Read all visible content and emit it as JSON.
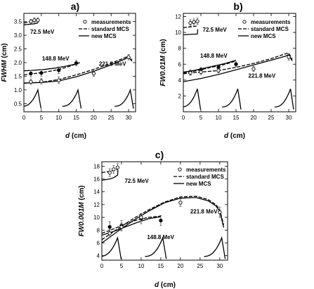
{
  "chart_data": [
    {
      "type": "line",
      "panel_label": "a)",
      "ylabel_main": "FWHM",
      "ylabel_unit": " (cm)",
      "xlabel_main": "d",
      "xlabel_unit": " (cm)",
      "xlim": [
        0,
        32
      ],
      "ylim": [
        0.2,
        3.8
      ],
      "xticks": [
        0,
        5,
        10,
        15,
        20,
        25,
        30
      ],
      "yticks": [
        0.5,
        1.0,
        1.5,
        2.0,
        2.5,
        3.0,
        3.5
      ],
      "ytick_labels": [
        "0.5",
        "1.0",
        "1.5",
        "2.0",
        "2.5",
        "3.0",
        "3.5"
      ],
      "legend": [
        "measurements",
        "standard MCS",
        "new MCS"
      ],
      "groups": [
        {
          "energy_label": "72.5 MeV",
          "label_at": [
            1.8,
            3.05
          ],
          "measurements": {
            "x": [
              2,
              3,
              4
            ],
            "y": [
              3.5,
              3.55,
              3.55
            ],
            "err": [
              0.08,
              0.08,
              0.08
            ],
            "filled": false
          },
          "standard": {
            "x": [
              0,
              1.5,
              3,
              4
            ],
            "y": [
              3.45,
              3.48,
              3.52,
              3.55
            ]
          },
          "new": {
            "x": [
              0,
              1.5,
              3,
              4
            ],
            "y": [
              3.38,
              3.4,
              3.42,
              3.45
            ]
          }
        },
        {
          "energy_label": "148.8 MeV",
          "label_at": [
            5.2,
            2.08
          ],
          "measurements": {
            "x": [
              2,
              5,
              10,
              15
            ],
            "y": [
              1.6,
              1.62,
              1.72,
              1.98
            ],
            "err": [
              0.12,
              0.12,
              0.12,
              0.1
            ],
            "filled": true
          },
          "standard": {
            "x": [
              0,
              3,
              6,
              9,
              12,
              15,
              16
            ],
            "y": [
              1.55,
              1.6,
              1.65,
              1.72,
              1.82,
              1.95,
              2.0
            ]
          },
          "new": {
            "x": [
              0,
              3,
              6,
              9,
              12,
              15,
              16
            ],
            "y": [
              1.7,
              1.72,
              1.75,
              1.8,
              1.87,
              1.95,
              2.0
            ]
          }
        },
        {
          "energy_label": "221.8 MeV",
          "label_at": [
            21.5,
            1.88
          ],
          "measurements": {
            "x": [
              2,
              5,
              10,
              20,
              30
            ],
            "y": [
              1.3,
              1.32,
              1.35,
              1.6,
              2.2
            ],
            "err": [
              0.1,
              0.1,
              0.12,
              0.1,
              0.1
            ],
            "filled": false
          },
          "standard": {
            "x": [
              0,
              5,
              10,
              15,
              20,
              25,
              29,
              30,
              31
            ],
            "y": [
              1.25,
              1.28,
              1.38,
              1.55,
              1.75,
              1.98,
              2.18,
              2.25,
              2.1
            ]
          },
          "new": {
            "x": [
              0,
              5,
              10,
              15,
              20,
              25,
              29,
              30,
              31
            ],
            "y": [
              1.25,
              1.27,
              1.33,
              1.48,
              1.68,
              1.92,
              2.13,
              2.2,
              2.05
            ]
          }
        }
      ],
      "bragg_peaks": {
        "ranges": [
          4,
          15.5,
          30.5
        ],
        "base_y": 0.32,
        "height": 0.68
      }
    },
    {
      "type": "line",
      "panel_label": "b)",
      "ylabel_main": "FW0.01M",
      "ylabel_unit": " (cm)",
      "xlabel_main": "d",
      "xlabel_unit": " (cm)",
      "xlim": [
        0,
        32
      ],
      "ylim": [
        0,
        12.4
      ],
      "xticks": [
        0,
        5,
        10,
        15,
        20,
        25,
        30
      ],
      "yticks": [
        2,
        4,
        6,
        8,
        10,
        12
      ],
      "ytick_labels": [
        "2",
        "4",
        "6",
        "8",
        "10",
        "12"
      ],
      "legend": [
        "measurements",
        "standard MCS",
        "new MCS"
      ],
      "groups": [
        {
          "energy_label": "72.5 MeV",
          "label_at": [
            5.5,
            10.1
          ],
          "measurements": {
            "x": [
              2,
              3,
              4
            ],
            "y": [
              11.2,
              11.3,
              11.4
            ],
            "err": [
              0.4,
              0.4,
              0.4
            ],
            "filled": false
          },
          "standard": {
            "x": [
              0,
              2,
              4
            ],
            "y": [
              10.6,
              10.7,
              10.8
            ]
          },
          "new": {
            "x": [
              0,
              2,
              4,
              4.1
            ],
            "y": [
              9.7,
              9.75,
              9.8,
              10.4
            ]
          }
        },
        {
          "energy_label": "148.8 MeV",
          "label_at": [
            4.8,
            6.8
          ],
          "measurements": {
            "x": [
              2,
              5,
              10,
              15
            ],
            "y": [
              5.0,
              5.3,
              5.6,
              6.0
            ],
            "err": [
              0.3,
              0.3,
              0.3,
              0.3
            ],
            "filled": true
          },
          "standard": {
            "x": [
              0,
              3,
              6,
              9,
              12,
              15
            ],
            "y": [
              4.9,
              5.1,
              5.4,
              5.7,
              6.0,
              6.4
            ]
          },
          "new": {
            "x": [
              0,
              3,
              6,
              9,
              12,
              15
            ],
            "y": [
              5.0,
              5.2,
              5.5,
              5.8,
              6.1,
              6.5
            ]
          }
        },
        {
          "energy_label": "221.8 MeV",
          "label_at": [
            18.5,
            4.3
          ],
          "measurements": {
            "x": [
              2,
              5,
              10,
              20,
              30
            ],
            "y": [
              4.9,
              5.0,
              5.2,
              5.4,
              6.9
            ],
            "err": [
              0.3,
              0.3,
              0.3,
              0.3,
              0.4
            ],
            "filled": false
          },
          "standard": {
            "x": [
              0,
              5,
              10,
              15,
              20,
              25,
              29,
              30,
              31
            ],
            "y": [
              4.8,
              5.0,
              5.2,
              5.6,
              6.1,
              6.7,
              7.3,
              7.4,
              6.6
            ]
          },
          "new": {
            "x": [
              0,
              5,
              10,
              15,
              20,
              25,
              29,
              30,
              31
            ],
            "y": [
              3.8,
              4.2,
              4.7,
              5.3,
              5.9,
              6.5,
              7.0,
              7.2,
              6.4
            ]
          }
        }
      ],
      "bragg_peaks": {
        "ranges": [
          4,
          15.5,
          30.5
        ],
        "base_y": 0.3,
        "height": 2.6
      }
    },
    {
      "type": "line",
      "panel_label": "c)",
      "ylabel_main": "FW0.001M",
      "ylabel_unit": " (cm)",
      "xlabel_main": "d",
      "xlabel_unit": " (cm)",
      "xlim": [
        0,
        32
      ],
      "ylim": [
        3.3,
        18.7
      ],
      "xticks": [
        0,
        5,
        10,
        15,
        20,
        25,
        30
      ],
      "yticks": [
        4,
        6,
        8,
        10,
        12,
        14,
        16,
        18
      ],
      "ytick_labels": [
        "4",
        "6",
        "8",
        "10",
        "12",
        "14",
        "16",
        "18"
      ],
      "legend": [
        "measurements",
        "standard MCS",
        "new MCS"
      ],
      "groups": [
        {
          "energy_label": "72.5 MeV",
          "label_at": [
            5.8,
            15.4
          ],
          "measurements": {
            "x": [
              2,
              3,
              4
            ],
            "y": [
              17.0,
              17.5,
              17.8
            ],
            "err": [
              0.6,
              0.6,
              0.6
            ],
            "filled": false
          },
          "standard": {
            "x": [
              0,
              2,
              4
            ],
            "y": [
              17.0,
              17.2,
              17.5
            ]
          },
          "new": {
            "x": [
              0,
              2,
              3,
              4,
              4.1
            ],
            "y": [
              15.8,
              16.0,
              16.2,
              16.6,
              17.4
            ]
          }
        },
        {
          "energy_label": "148.8 MeV",
          "label_at": [
            11.5,
            6.6
          ],
          "measurements": {
            "x": [
              2,
              5,
              10,
              15
            ],
            "y": [
              8.5,
              8.7,
              9.8,
              9.5
            ],
            "err": [
              0.8,
              0.8,
              0.8,
              0.8
            ],
            "filled": true
          },
          "standard": {
            "x": [
              0,
              3,
              6,
              9,
              12,
              15
            ],
            "y": [
              7.5,
              8.2,
              9.0,
              9.6,
              10.0,
              10.2
            ]
          },
          "new": {
            "x": [
              0,
              3,
              6,
              9,
              12,
              15
            ],
            "y": [
              7.2,
              7.8,
              8.5,
              9.2,
              9.8,
              10.1
            ]
          }
        },
        {
          "energy_label": "221.8 MeV",
          "label_at": [
            22.5,
            10.6
          ],
          "measurements": {
            "x": [
              2,
              5,
              10,
              20,
              30
            ],
            "y": [
              7.5,
              8.5,
              10.0,
              12.3,
              10.8
            ],
            "err": [
              0.6,
              0.6,
              0.6,
              0.6,
              0.8
            ],
            "filled": false
          },
          "standard": {
            "x": [
              0,
              4,
              8,
              12,
              16,
              20,
              24,
              27,
              29,
              30,
              31
            ],
            "y": [
              6.5,
              8.2,
              9.8,
              11.2,
              12.4,
              13.2,
              13.3,
              12.8,
              12.0,
              11.2,
              8.8
            ]
          },
          "new": {
            "x": [
              0,
              4,
              8,
              12,
              16,
              20,
              24,
              27,
              29,
              30,
              31
            ],
            "y": [
              6.0,
              7.8,
              9.5,
              11.0,
              12.3,
              13.0,
              13.1,
              12.6,
              11.8,
              11.0,
              8.4
            ]
          }
        }
      ],
      "bragg_peaks": {
        "ranges": [
          4,
          15.5,
          30.5
        ],
        "base_y": 3.5,
        "height": 3.3
      }
    }
  ]
}
